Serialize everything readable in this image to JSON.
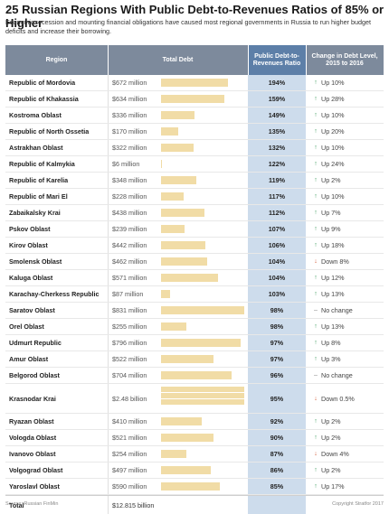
{
  "title": "25 Russian Regions With Public Debt-to-Revenues Ratios of 85% or Higher",
  "subtitle": "Economic recession and mounting financial obligations have caused most regional governments in Russia to run higher budget deficits and increase their borrowing.",
  "headers": {
    "region": "Region",
    "total_debt": "Total Debt",
    "ratio": "Public Debt-to-Revenues Ratio",
    "change": "Change in Debt Level, 2015 to 2016"
  },
  "colors": {
    "header": "#7d8a9c",
    "ratio_header": "#5d7fa8",
    "ratio_col": "#cddcec",
    "bar": "#f1dca6",
    "up": "#3a9a5b",
    "down": "#d2552d",
    "none": "#888888"
  },
  "chart_data": {
    "type": "table",
    "title": "25 Russian Regions With Public Debt-to-Revenues Ratios of 85% or Higher",
    "rows": [
      {
        "region": "Republic of Mordovia",
        "debt_label": "$672 million",
        "debt": 672,
        "ratio": "194%",
        "dir": "up",
        "change": "Up 10%"
      },
      {
        "region": "Republic of Khakassia",
        "debt_label": "$634 million",
        "debt": 634,
        "ratio": "159%",
        "dir": "up",
        "change": "Up 28%"
      },
      {
        "region": "Kostroma Oblast",
        "debt_label": "$336 million",
        "debt": 336,
        "ratio": "149%",
        "dir": "up",
        "change": "Up 10%"
      },
      {
        "region": "Republic of North Ossetia",
        "debt_label": "$170 million",
        "debt": 170,
        "ratio": "135%",
        "dir": "up",
        "change": "Up 20%"
      },
      {
        "region": "Astrakhan Oblast",
        "debt_label": "$322 million",
        "debt": 322,
        "ratio": "132%",
        "dir": "up",
        "change": "Up 10%"
      },
      {
        "region": "Republic of Kalmykia",
        "debt_label": "$6 million",
        "debt": 6,
        "ratio": "122%",
        "dir": "up",
        "change": "Up 24%"
      },
      {
        "region": "Republic of Karelia",
        "debt_label": "$348 million",
        "debt": 348,
        "ratio": "119%",
        "dir": "up",
        "change": "Up 2%"
      },
      {
        "region": "Republic of Mari El",
        "debt_label": "$228 million",
        "debt": 228,
        "ratio": "117%",
        "dir": "up",
        "change": "Up 10%"
      },
      {
        "region": "Zabaikalsky Krai",
        "debt_label": "$438 million",
        "debt": 438,
        "ratio": "112%",
        "dir": "up",
        "change": "Up 7%"
      },
      {
        "region": "Pskov Oblast",
        "debt_label": "$239 million",
        "debt": 239,
        "ratio": "107%",
        "dir": "up",
        "change": "Up 9%"
      },
      {
        "region": "Kirov Oblast",
        "debt_label": "$442 million",
        "debt": 442,
        "ratio": "106%",
        "dir": "up",
        "change": "Up 18%"
      },
      {
        "region": "Smolensk Oblast",
        "debt_label": "$462 million",
        "debt": 462,
        "ratio": "104%",
        "dir": "down",
        "change": "Down 8%"
      },
      {
        "region": "Kaluga Oblast",
        "debt_label": "$571 million",
        "debt": 571,
        "ratio": "104%",
        "dir": "up",
        "change": "Up 12%"
      },
      {
        "region": "Karachay-Cherkess Republic",
        "debt_label": "$87 million",
        "debt": 87,
        "ratio": "103%",
        "dir": "up",
        "change": "Up 13%"
      },
      {
        "region": "Saratov Oblast",
        "debt_label": "$831 million",
        "debt": 831,
        "ratio": "98%",
        "dir": "none",
        "change": "No change"
      },
      {
        "region": "Orel Oblast",
        "debt_label": "$255 million",
        "debt": 255,
        "ratio": "98%",
        "dir": "up",
        "change": "Up 13%"
      },
      {
        "region": "Udmurt Republic",
        "debt_label": "$796 million",
        "debt": 796,
        "ratio": "97%",
        "dir": "up",
        "change": "Up 8%"
      },
      {
        "region": "Amur Oblast",
        "debt_label": "$522 million",
        "debt": 522,
        "ratio": "97%",
        "dir": "up",
        "change": "Up 3%"
      },
      {
        "region": "Belgorod Oblast",
        "debt_label": "$704 million",
        "debt": 704,
        "ratio": "96%",
        "dir": "none",
        "change": "No change"
      },
      {
        "region": "Krasnodar Krai",
        "debt_label": "$2.48 billion",
        "debt": 2480,
        "ratio": "95%",
        "dir": "down",
        "change": "Down 0.5%"
      },
      {
        "region": "Ryazan Oblast",
        "debt_label": "$410 million",
        "debt": 410,
        "ratio": "92%",
        "dir": "up",
        "change": "Up 2%"
      },
      {
        "region": "Vologda Oblast",
        "debt_label": "$521 million",
        "debt": 521,
        "ratio": "90%",
        "dir": "up",
        "change": "Up 2%"
      },
      {
        "region": "Ivanovo Oblast",
        "debt_label": "$254 million",
        "debt": 254,
        "ratio": "87%",
        "dir": "down",
        "change": "Down 4%"
      },
      {
        "region": "Volgograd Oblast",
        "debt_label": "$497 million",
        "debt": 497,
        "ratio": "86%",
        "dir": "up",
        "change": "Up 2%"
      },
      {
        "region": "Yaroslavl Oblast",
        "debt_label": "$590 million",
        "debt": 590,
        "ratio": "85%",
        "dir": "up",
        "change": "Up 17%"
      }
    ],
    "total": {
      "label": "Total",
      "value": "$12.815 billion"
    }
  },
  "footer": {
    "source": "Source: Russian FinMin",
    "copyright": "Copyright Stratfor 2017"
  }
}
